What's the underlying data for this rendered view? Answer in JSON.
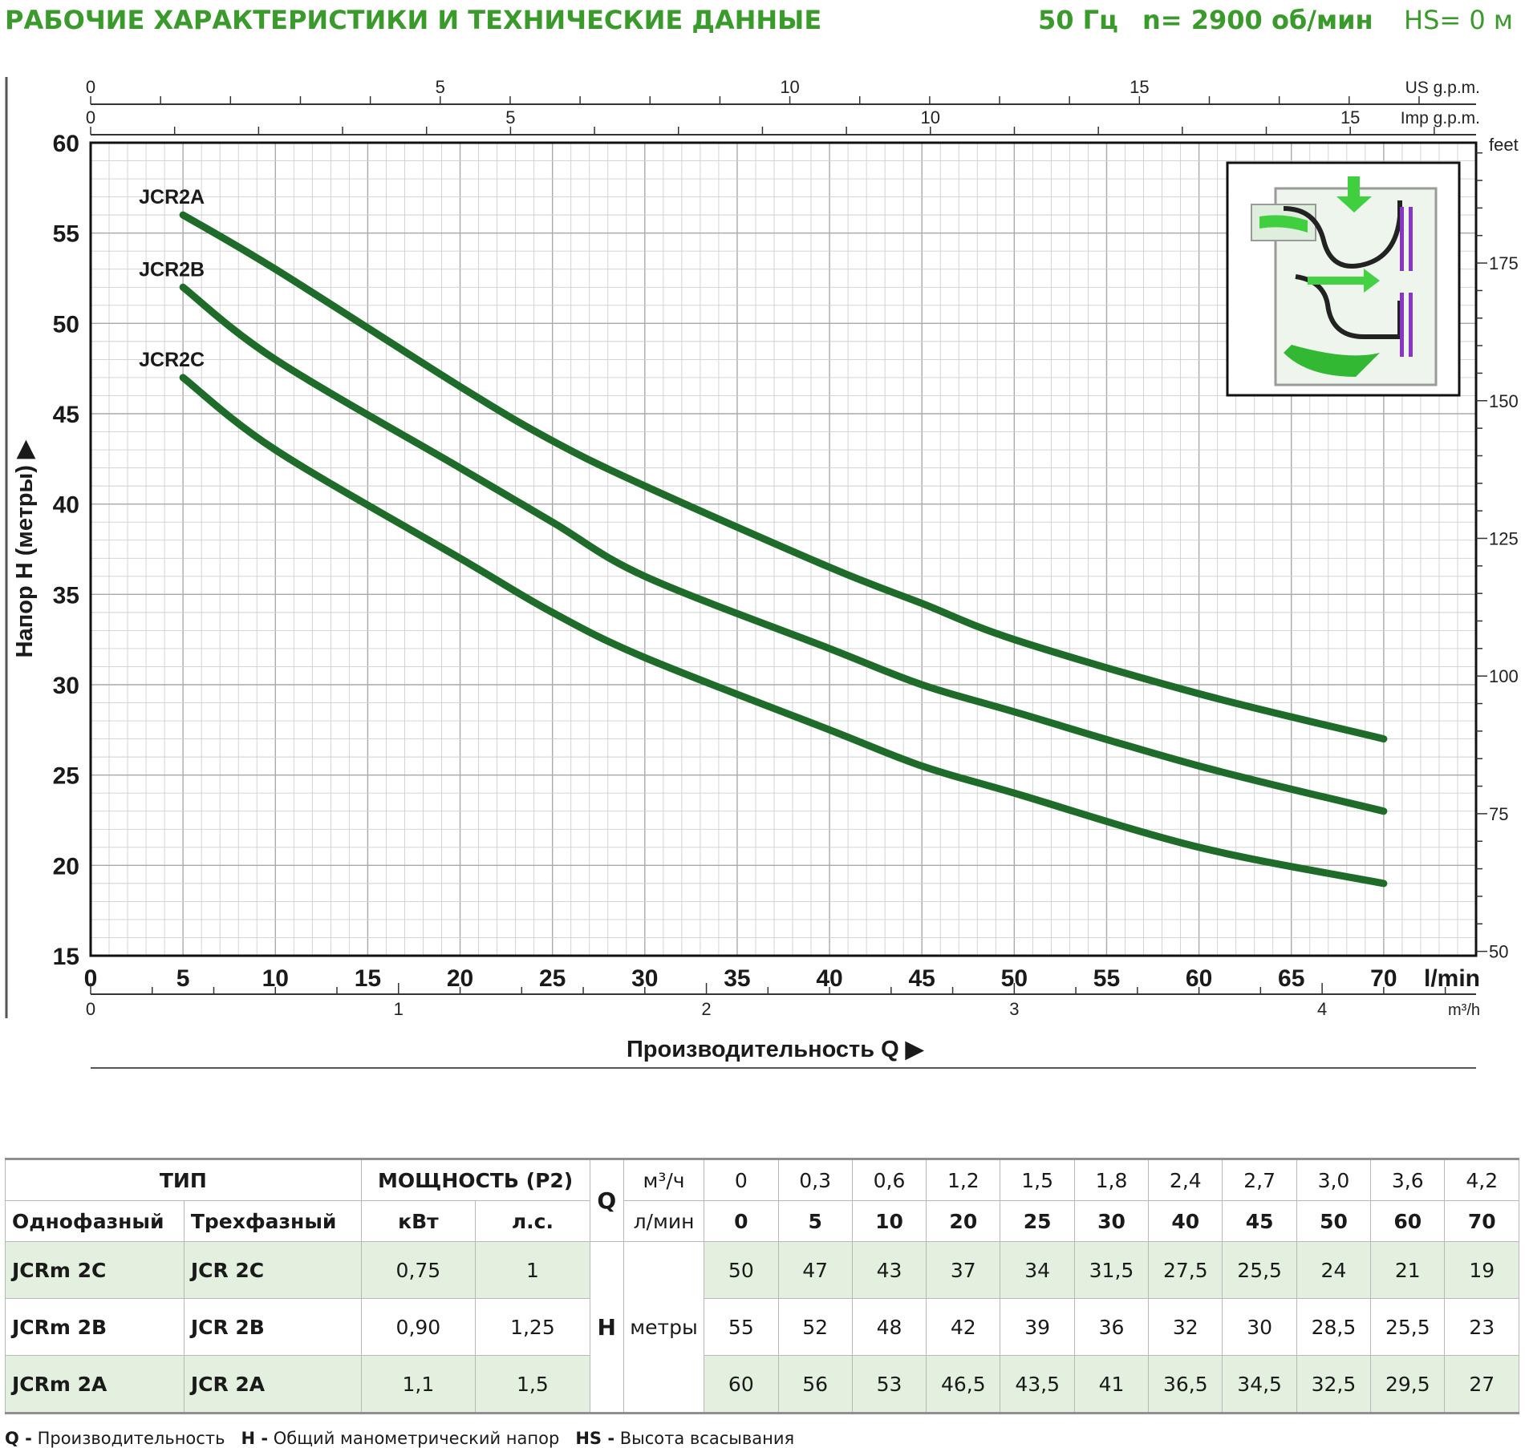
{
  "header": {
    "title": "РАБОЧИЕ ХАРАКТЕРИСТИКИ И ТЕХНИЧЕСКИЕ ДАННЫЕ",
    "frequency": "50 Гц",
    "speed": "n= 2900 об/мин",
    "suction": "HS= 0 м"
  },
  "chart_data": {
    "type": "line",
    "xlabel": "Производительность Q",
    "ylabel": "Напор H (метры)",
    "x_unit": "l/min",
    "xlim": [
      0,
      75
    ],
    "ylim": [
      15,
      60
    ],
    "x_ticks": [
      0,
      5,
      10,
      15,
      20,
      25,
      30,
      35,
      40,
      45,
      50,
      55,
      60,
      65,
      70
    ],
    "y_ticks": [
      15,
      20,
      25,
      30,
      35,
      40,
      45,
      50,
      55,
      60
    ],
    "grid": true,
    "secondary_axes": {
      "us_gpm": {
        "label": "US g.p.m.",
        "ticks": [
          "0",
          "5",
          "10",
          "15"
        ]
      },
      "imp_gpm": {
        "label": "Imp g.p.m.",
        "ticks": [
          "0",
          "5",
          "10",
          "15"
        ]
      },
      "m3h": {
        "label": "m³/h",
        "ticks": [
          "0",
          "1",
          "2",
          "3",
          "4"
        ]
      },
      "feet": {
        "label": "feet",
        "ticks": [
          "50",
          "75",
          "100",
          "125",
          "150",
          "175"
        ]
      }
    },
    "x": [
      5,
      10,
      20,
      25,
      30,
      40,
      45,
      50,
      60,
      70
    ],
    "series": [
      {
        "name": "JCR2A",
        "values": [
          56,
          53,
          46.5,
          43.5,
          41,
          36.5,
          34.5,
          32.5,
          29.5,
          27
        ]
      },
      {
        "name": "JCR2B",
        "values": [
          52,
          48,
          42,
          39,
          36,
          32,
          30,
          28.5,
          25.5,
          23
        ]
      },
      {
        "name": "JCR2C",
        "values": [
          47,
          43,
          37,
          34,
          31.5,
          27.5,
          25.5,
          24,
          21,
          19
        ]
      }
    ]
  },
  "colors": {
    "curve": "#1e6b2a",
    "title_green": "#3a9a2c",
    "grid": "#cfcfcf",
    "shade": "#e3f0df"
  },
  "table": {
    "type_header": "ТИП",
    "single_phase": "Однофазный",
    "three_phase": "Трехфазный",
    "power_header": "МОЩНОСТЬ (P2)",
    "kw": "кВт",
    "hp": "л.с.",
    "q_symbol": "Q",
    "m3h_label": "м³/ч",
    "lmin_label": "л/мин",
    "h_symbol": "H",
    "h_unit": "метры",
    "m3h_values": [
      "0",
      "0,3",
      "0,6",
      "1,2",
      "1,5",
      "1,8",
      "2,4",
      "2,7",
      "3,0",
      "3,6",
      "4,2"
    ],
    "lmin_values": [
      "0",
      "5",
      "10",
      "20",
      "25",
      "30",
      "40",
      "45",
      "50",
      "60",
      "70"
    ],
    "rows": [
      {
        "single": "JCRm 2C",
        "three": "JCR 2C",
        "kw": "0,75",
        "hp": "1",
        "h": [
          "50",
          "47",
          "43",
          "37",
          "34",
          "31,5",
          "27,5",
          "25,5",
          "24",
          "21",
          "19"
        ]
      },
      {
        "single": "JCRm 2B",
        "three": "JCR 2B",
        "kw": "0,90",
        "hp": "1,25",
        "h": [
          "55",
          "52",
          "48",
          "42",
          "39",
          "36",
          "32",
          "30",
          "28,5",
          "25,5",
          "23"
        ]
      },
      {
        "single": "JCRm 2A",
        "three": "JCR 2A",
        "kw": "1,1",
        "hp": "1,5",
        "h": [
          "60",
          "56",
          "53",
          "46,5",
          "43,5",
          "41",
          "36,5",
          "34,5",
          "32,5",
          "29,5",
          "27"
        ]
      }
    ]
  },
  "legend": {
    "q_key": "Q -",
    "q_text": "Производительность",
    "h_key": "H -",
    "h_text": "Общий манометрический напор",
    "hs_key": "HS -",
    "hs_text": "Высота всасывания"
  }
}
